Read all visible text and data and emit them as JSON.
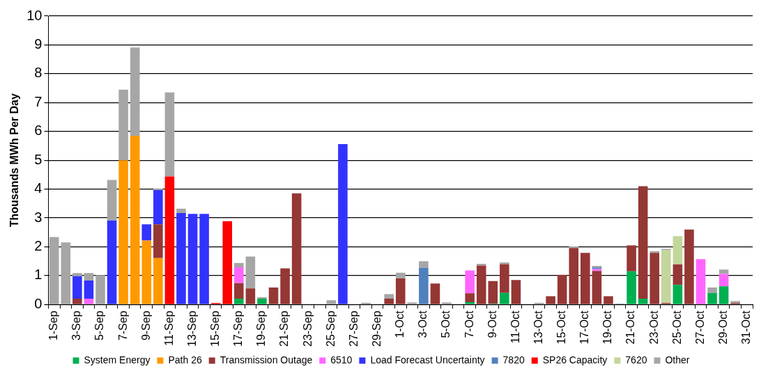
{
  "chart_data": {
    "type": "bar",
    "stacked": true,
    "ylabel": "Thousands MWh Per Day",
    "ylim": [
      0,
      10
    ],
    "yticks": [
      0,
      1,
      2,
      3,
      4,
      5,
      6,
      7,
      8,
      9,
      10
    ],
    "grid": "y",
    "legend": "bottom",
    "categories": [
      "1-Sep",
      null,
      "3-Sep",
      null,
      "5-Sep",
      null,
      "7-Sep",
      null,
      "9-Sep",
      null,
      "11-Sep",
      null,
      "13-Sep",
      null,
      "15-Sep",
      null,
      "17-Sep",
      null,
      "19-Sep",
      null,
      "21-Sep",
      null,
      "23-Sep",
      null,
      "25-Sep",
      null,
      "27-Sep",
      null,
      "29-Sep",
      null,
      "1-Oct",
      null,
      "3-Oct",
      null,
      "5-Oct",
      null,
      "7-Oct",
      null,
      "9-Oct",
      null,
      "11-Oct",
      null,
      "13-Oct",
      null,
      "15-Oct",
      null,
      "17-Oct",
      null,
      "19-Oct",
      null,
      "21-Oct",
      null,
      "23-Oct",
      null,
      "25-Oct",
      null,
      "27-Oct",
      null,
      "29-Oct",
      null,
      "31-Oct"
    ],
    "series": [
      {
        "name": "System Energy",
        "color": "#00b050",
        "values": [
          null,
          null,
          null,
          null,
          null,
          null,
          null,
          null,
          null,
          null,
          null,
          null,
          null,
          null,
          null,
          null,
          0.2,
          null,
          0.2,
          null,
          null,
          null,
          null,
          null,
          null,
          null,
          null,
          null,
          null,
          null,
          null,
          null,
          null,
          null,
          null,
          null,
          0.08,
          null,
          0.03,
          0.4,
          null,
          null,
          null,
          null,
          null,
          null,
          null,
          null,
          null,
          null,
          1.15,
          0.2,
          null,
          null,
          0.68,
          null,
          null,
          0.4,
          0.63,
          null,
          null
        ]
      },
      {
        "name": "Path 26",
        "color": "#ff9900",
        "values": [
          null,
          null,
          null,
          null,
          null,
          null,
          5.0,
          5.85,
          2.22,
          1.61,
          null,
          null,
          null,
          null,
          null,
          null,
          null,
          null,
          null,
          null,
          null,
          null,
          null,
          null,
          null,
          null,
          null,
          null,
          null,
          null,
          null,
          null,
          null,
          null,
          null,
          null,
          null,
          null,
          null,
          null,
          null,
          null,
          null,
          null,
          null,
          null,
          null,
          null,
          null,
          null,
          null,
          null,
          null,
          null,
          null,
          null,
          null,
          null,
          null,
          null,
          null
        ]
      },
      {
        "name": "Transmission Outage",
        "color": "#953735",
        "values": [
          null,
          null,
          0.2,
          null,
          null,
          null,
          null,
          null,
          null,
          1.17,
          null,
          null,
          null,
          null,
          null,
          null,
          0.54,
          0.56,
          null,
          0.59,
          1.25,
          3.85,
          null,
          null,
          null,
          null,
          null,
          null,
          null,
          0.2,
          0.9,
          null,
          null,
          0.73,
          null,
          null,
          0.31,
          1.35,
          0.78,
          1.0,
          0.85,
          null,
          null,
          0.29,
          1.03,
          1.96,
          1.79,
          1.16,
          0.29,
          null,
          0.9,
          3.9,
          1.79,
          0.05,
          0.71,
          2.6,
          null,
          null,
          null,
          0.05,
          null
        ]
      },
      {
        "name": "6510",
        "color": "#ff66ff",
        "values": [
          null,
          null,
          null,
          0.2,
          null,
          null,
          null,
          null,
          null,
          null,
          null,
          null,
          null,
          null,
          null,
          null,
          0.55,
          null,
          null,
          null,
          null,
          null,
          null,
          null,
          null,
          null,
          null,
          null,
          null,
          null,
          null,
          null,
          null,
          null,
          null,
          null,
          0.79,
          null,
          null,
          null,
          null,
          null,
          null,
          null,
          null,
          null,
          null,
          0.07,
          null,
          null,
          null,
          null,
          null,
          null,
          null,
          null,
          1.57,
          null,
          0.43,
          null,
          null
        ]
      },
      {
        "name": "Load Forecast Uncertainty",
        "color": "#3333ff",
        "values": [
          null,
          null,
          0.78,
          0.63,
          null,
          2.91,
          null,
          null,
          0.56,
          1.19,
          null,
          3.17,
          3.14,
          3.14,
          null,
          null,
          null,
          null,
          null,
          null,
          null,
          null,
          null,
          null,
          null,
          5.56,
          null,
          null,
          null,
          null,
          null,
          null,
          null,
          null,
          null,
          null,
          null,
          null,
          null,
          null,
          null,
          null,
          null,
          null,
          null,
          null,
          null,
          null,
          null,
          null,
          null,
          null,
          null,
          null,
          null,
          null,
          null,
          null,
          null,
          null,
          null
        ]
      },
      {
        "name": "7820",
        "color": "#4f81bd",
        "values": [
          null,
          null,
          null,
          null,
          null,
          null,
          null,
          null,
          null,
          null,
          null,
          null,
          null,
          null,
          null,
          null,
          null,
          null,
          null,
          null,
          null,
          null,
          null,
          null,
          null,
          null,
          null,
          null,
          null,
          null,
          null,
          null,
          1.27,
          null,
          null,
          null,
          null,
          null,
          null,
          null,
          null,
          null,
          null,
          null,
          null,
          null,
          null,
          0.05,
          null,
          0.03,
          null,
          null,
          null,
          null,
          null,
          null,
          null,
          null,
          null,
          null,
          null
        ]
      },
      {
        "name": "SP26 Capacity",
        "color": "#ff0000",
        "values": [
          null,
          null,
          null,
          null,
          null,
          null,
          null,
          null,
          null,
          null,
          4.44,
          null,
          null,
          null,
          0.05,
          2.89,
          null,
          null,
          null,
          null,
          null,
          null,
          null,
          null,
          null,
          null,
          null,
          null,
          null,
          null,
          null,
          null,
          null,
          null,
          null,
          null,
          null,
          null,
          null,
          null,
          null,
          null,
          null,
          null,
          null,
          null,
          null,
          null,
          null,
          null,
          null,
          null,
          null,
          null,
          null,
          null,
          null,
          null,
          null,
          null,
          null
        ]
      },
      {
        "name": "7620",
        "color": "#c3d69b",
        "values": [
          null,
          null,
          null,
          null,
          null,
          null,
          null,
          null,
          null,
          null,
          null,
          null,
          null,
          null,
          null,
          null,
          null,
          null,
          null,
          null,
          null,
          null,
          null,
          null,
          null,
          null,
          null,
          null,
          null,
          null,
          null,
          null,
          null,
          null,
          null,
          null,
          null,
          null,
          null,
          null,
          null,
          null,
          null,
          null,
          null,
          null,
          null,
          null,
          null,
          null,
          null,
          null,
          null,
          1.83,
          0.98,
          null,
          null,
          null,
          null,
          null,
          null
        ]
      },
      {
        "name": "Other",
        "color": "#a6a6a6",
        "values": [
          2.34,
          2.15,
          0.11,
          0.26,
          1.02,
          1.41,
          2.45,
          3.06,
          null,
          0.05,
          2.91,
          0.15,
          null,
          null,
          null,
          null,
          0.15,
          1.1,
          0.05,
          null,
          null,
          null,
          null,
          null,
          0.15,
          null,
          null,
          0.06,
          null,
          0.16,
          0.2,
          0.07,
          0.23,
          null,
          0.07,
          null,
          null,
          0.06,
          null,
          0.06,
          null,
          null,
          0.06,
          null,
          null,
          0.05,
          null,
          0.06,
          null,
          null,
          null,
          null,
          0.06,
          0.05,
          null,
          null,
          null,
          0.19,
          0.15,
          0.07,
          null
        ]
      }
    ]
  }
}
